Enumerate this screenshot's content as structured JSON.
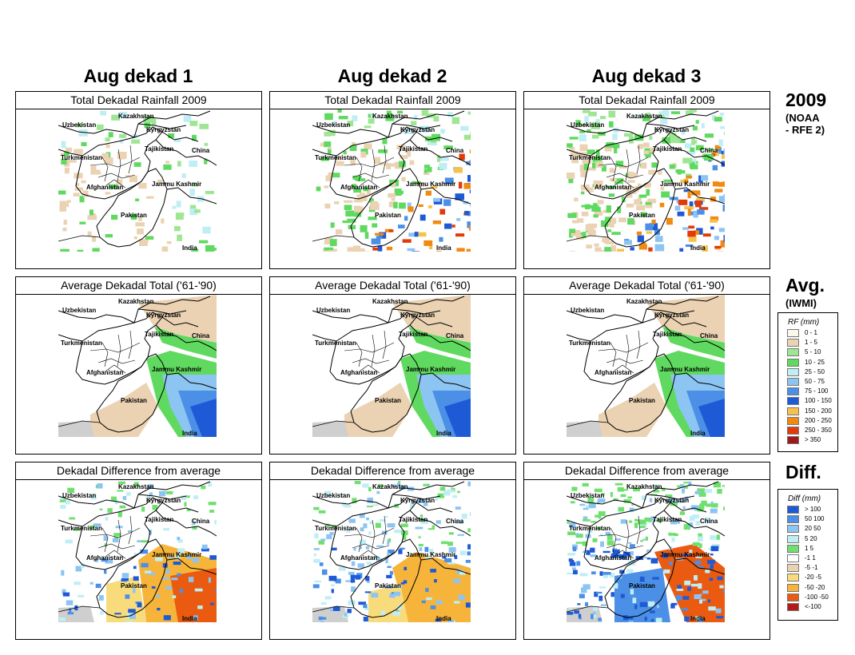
{
  "columns": [
    "Aug dekad 1",
    "Aug dekad 2",
    "Aug dekad 3"
  ],
  "rows": [
    {
      "panel_title": "Total Dekadal Rainfall 2009",
      "side_label": "2009",
      "side_sub": "(NOAA\n- RFE 2)",
      "kind": "rain"
    },
    {
      "panel_title": "Average Dekadal Total ('61-'90)",
      "side_label": "Avg.",
      "side_sub": "(IWMI)",
      "kind": "avg"
    },
    {
      "panel_title": "Dekadal Difference from average",
      "side_label": "Diff.",
      "side_sub": "",
      "kind": "diff"
    }
  ],
  "countries": [
    "Kazakhstan",
    "Uzbekistan",
    "Kyrgyzstan",
    "Tajikistan",
    "China",
    "Turkmenistan",
    "Afghanistan",
    "Jammu Kashmir",
    "Pakistan",
    "India"
  ],
  "rf_legend": {
    "title": "RF (mm)",
    "items": [
      {
        "label": "0 - 1",
        "color": "#fdf6ea"
      },
      {
        "label": "1 - 5",
        "color": "#ead2b3"
      },
      {
        "label": "5 - 10",
        "color": "#9ee693"
      },
      {
        "label": "10 - 25",
        "color": "#5fd95f"
      },
      {
        "label": "25 - 50",
        "color": "#bfeef5"
      },
      {
        "label": "50 - 75",
        "color": "#8cc4f2"
      },
      {
        "label": "75 - 100",
        "color": "#4b8fe6"
      },
      {
        "label": "100 - 150",
        "color": "#1f5ad6"
      },
      {
        "label": "150 - 200",
        "color": "#f6c24b"
      },
      {
        "label": "200 - 250",
        "color": "#f08a12"
      },
      {
        "label": "250 - 350",
        "color": "#e23a0a"
      },
      {
        "label": "> 350",
        "color": "#a01818"
      }
    ]
  },
  "diff_legend": {
    "title": "Diff (mm)",
    "items": [
      {
        "label": "> 100",
        "color": "#1f5ad6"
      },
      {
        "label": "50  100",
        "color": "#4b8fe6"
      },
      {
        "label": "20  50",
        "color": "#8cc4f2"
      },
      {
        "label": "5  20",
        "color": "#bfeef5"
      },
      {
        "label": "1  5",
        "color": "#6fe06f"
      },
      {
        "label": "-1  1",
        "color": "#ffffff"
      },
      {
        "label": "-5  -1",
        "color": "#ead2b3"
      },
      {
        "label": "-20  -5",
        "color": "#f8dc7c"
      },
      {
        "label": "-50  -20",
        "color": "#f6b43b"
      },
      {
        "label": "-100  -50",
        "color": "#ea5a10"
      },
      {
        "label": "<-100",
        "color": "#b01a1a"
      }
    ]
  }
}
